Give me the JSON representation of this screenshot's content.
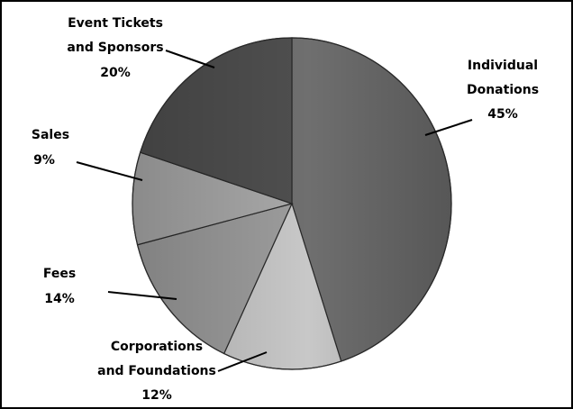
{
  "chart_data": {
    "type": "pie",
    "title": "",
    "colors": [
      "#6f6f6f",
      "#c8c8c8",
      "#9d9d9d",
      "#a9a9a9",
      "#4f4f4f"
    ],
    "slices": [
      {
        "name_lines": [
          "Individual",
          "Donations"
        ],
        "pct_label": "45%",
        "value": 45
      },
      {
        "name_lines": [
          "Corporations",
          "and Foundations"
        ],
        "pct_label": "12%",
        "value": 12
      },
      {
        "name_lines": [
          "Fees"
        ],
        "pct_label": "14%",
        "value": 14
      },
      {
        "name_lines": [
          "Sales"
        ],
        "pct_label": "9%",
        "value": 9
      },
      {
        "name_lines": [
          "Event Tickets",
          "and Sponsors"
        ],
        "pct_label": "20%",
        "value": 20
      }
    ]
  }
}
